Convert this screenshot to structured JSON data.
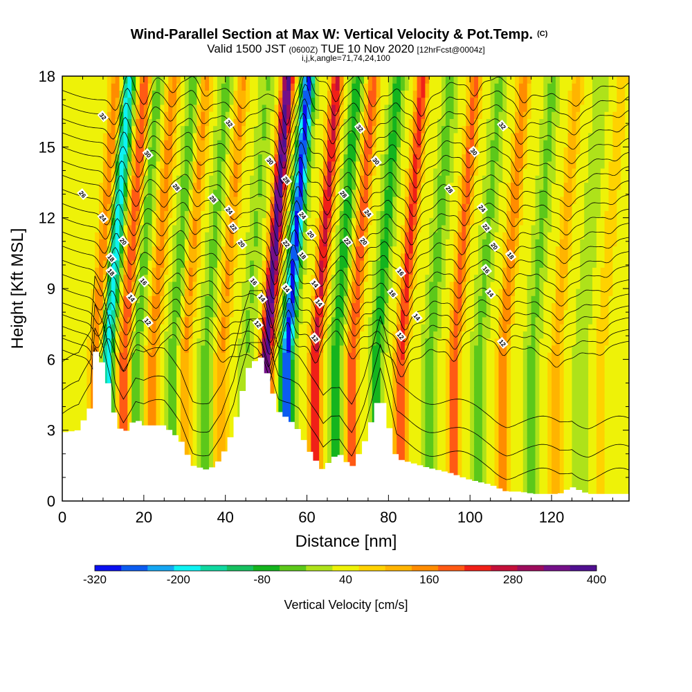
{
  "chart_data": {
    "type": "heatmap",
    "title_main": "Wind-Parallel Section at Max W: Vertical Velocity & Pot.Temp.",
    "title_mark": "(C)",
    "subtitle_valid": "Valid 1500 JST",
    "subtitle_utc": "(0600Z)",
    "subtitle_date": "TUE 10 Nov 2020",
    "subtitle_fcst": "[12hrFcst@0004z]",
    "params": "i,j,k,angle=71,74,24,100",
    "xlabel": "Distance [nm]",
    "ylabel": "Height [Kft MSL]",
    "xlim": [
      0,
      139
    ],
    "ylim": [
      0,
      18
    ],
    "xticks": [
      0,
      20,
      40,
      60,
      80,
      100,
      120
    ],
    "yticks": [
      0,
      3,
      6,
      9,
      12,
      15,
      18
    ],
    "colorbar": {
      "label": "Vertical Velocity [cm/s]",
      "tick_labels": [
        "-320",
        "-200",
        "-80",
        "40",
        "160",
        "280",
        "400"
      ],
      "min": -320,
      "max": 400,
      "colors": [
        "#0a10f0",
        "#0c5cf0",
        "#15a6f2",
        "#0ef2f2",
        "#10d8a0",
        "#16c060",
        "#14b41e",
        "#5cc81a",
        "#aee21a",
        "#eef208",
        "#ffd200",
        "#ffb400",
        "#ff8c00",
        "#ff5a14",
        "#f02018",
        "#c4103a",
        "#9c0c5c",
        "#741088",
        "#501090"
      ]
    },
    "velocity_field": {
      "updraft_x_nm": [
        8,
        15,
        22,
        30,
        39,
        50,
        62,
        71,
        83,
        96,
        108,
        121,
        132
      ],
      "updraft_peak_cms": [
        140,
        180,
        130,
        110,
        110,
        360,
        230,
        170,
        200,
        160,
        140,
        90,
        60
      ],
      "downdraft_x_nm": [
        11,
        18,
        27,
        35,
        45,
        55,
        67,
        77,
        90,
        102,
        115,
        127
      ],
      "downdraft_peak_cms": [
        -230,
        -70,
        -70,
        -60,
        -50,
        -330,
        -110,
        -110,
        -70,
        -60,
        -60,
        -40
      ]
    },
    "theta_contours": {
      "values_shown": [
        12,
        14,
        16,
        18,
        20,
        22,
        24,
        26,
        28,
        30,
        32
      ],
      "labels": [
        "32",
        "30",
        "26",
        "28",
        "24",
        "22",
        "20",
        "18",
        "16",
        "14",
        "12"
      ]
    },
    "terrain": {
      "x_nm": [
        0,
        4,
        7,
        8,
        10,
        12,
        13,
        15,
        18,
        20,
        25,
        29,
        32,
        36,
        39,
        42,
        44,
        46,
        49,
        51,
        53,
        56,
        58,
        61,
        64,
        66,
        68,
        71,
        74,
        77,
        78,
        79,
        82,
        86,
        90,
        95,
        100,
        105,
        109,
        112,
        116,
        122,
        125,
        129,
        134,
        139
      ],
      "height_kft": [
        2.9,
        3.0,
        4.0,
        6.4,
        5.8,
        4.5,
        3.5,
        2.8,
        3.5,
        3.2,
        3.2,
        2.6,
        1.5,
        1.3,
        1.8,
        3.0,
        4.5,
        5.8,
        6.1,
        5.0,
        3.8,
        3.4,
        3.0,
        2.0,
        1.3,
        1.8,
        2.0,
        1.4,
        2.4,
        4.0,
        4.6,
        4.0,
        1.8,
        1.6,
        1.4,
        1.2,
        0.9,
        0.7,
        0.4,
        0.4,
        0.3,
        0.3,
        0.6,
        0.3,
        0.3,
        0.3
      ]
    }
  }
}
